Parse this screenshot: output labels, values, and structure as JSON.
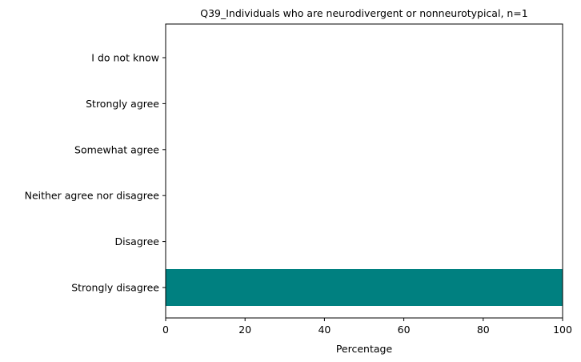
{
  "chart_data": {
    "type": "bar",
    "orientation": "horizontal",
    "title": "Q39_Individuals who are neurodivergent or nonneurotypical, n=1",
    "xlabel": "Percentage",
    "ylabel": "",
    "categories": [
      "Strongly disagree",
      "Disagree",
      "Neither agree nor disagree",
      "Somewhat agree",
      "Strongly agree",
      "I do not know"
    ],
    "values": [
      100,
      0,
      0,
      0,
      0,
      0
    ],
    "xlim": [
      0,
      100
    ],
    "xticks": [
      "0",
      "20",
      "40",
      "60",
      "80",
      "100"
    ],
    "bar_color": "#008080",
    "grid": false,
    "legend": false
  }
}
